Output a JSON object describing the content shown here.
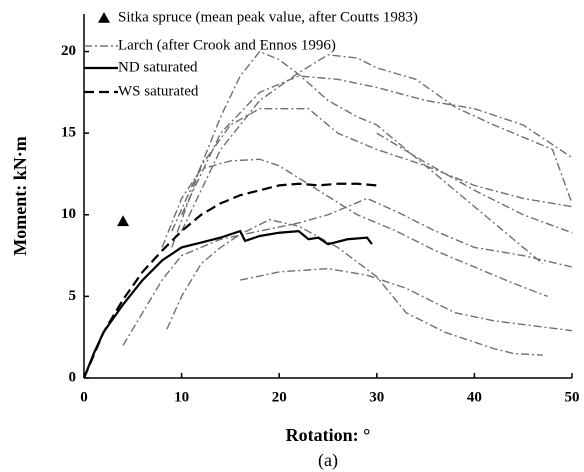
{
  "chart_data": {
    "type": "line",
    "xlabel": "Rotation: °",
    "ylabel": "Moment: kN·m",
    "caption": "(a)",
    "xlim": [
      0,
      50
    ],
    "xticks": [
      0,
      10,
      20,
      30,
      40,
      50
    ],
    "ylim": [
      0,
      22.3
    ],
    "yticks": [
      0,
      5,
      10,
      15,
      20
    ],
    "series": [
      {
        "name": "Sitka spruce (mean peak value, after Coutts 1983)",
        "style": "marker",
        "color": "#000000",
        "x": [
          4
        ],
        "values": [
          9.6
        ]
      },
      {
        "name": "Larch  (after Crook and Ennos 1996)",
        "style": "dashdot",
        "color": "#707070",
        "lines": [
          {
            "x": [
              9,
              12,
              14,
              16,
              18,
              20,
              22,
              25,
              28,
              30,
              35,
              40,
              44,
              47
            ],
            "values": [
              8,
              13,
              16,
              18.5,
              20,
              19.5,
              18.6,
              17,
              16,
              15.5,
              13,
              10.5,
              8.5,
              7
            ]
          },
          {
            "x": [
              10,
              14,
              18,
              22,
              25,
              28,
              30,
              34,
              38,
              42,
              46,
              48,
              50
            ],
            "values": [
              9,
              14,
              17,
              18.7,
              19.8,
              19.6,
              19,
              18.3,
              16.6,
              15.5,
              14.5,
              14,
              10.7
            ]
          },
          {
            "x": [
              10,
              14,
              18,
              22,
              26,
              30,
              35,
              40,
              45,
              50
            ],
            "values": [
              10,
              15,
              17.5,
              18.5,
              18.3,
              17.8,
              17,
              16.5,
              15.5,
              13.5
            ]
          },
          {
            "x": [
              9,
              12,
              15,
              18,
              23,
              26,
              30,
              35,
              40,
              45,
              50
            ],
            "values": [
              9,
              13,
              15.5,
              16.5,
              16.5,
              15,
              14,
              13,
              11.8,
              11,
              10.5
            ]
          },
          {
            "x": [
              8,
              10,
              12,
              15,
              18,
              20,
              24,
              28,
              32,
              36,
              40,
              44,
              47.5
            ],
            "values": [
              8,
              11,
              12.8,
              13.3,
              13.4,
              13,
              11.5,
              10,
              9,
              7.8,
              6.8,
              5.8,
              5
            ]
          },
          {
            "x": [
              4,
              6,
              8,
              10,
              14,
              18,
              22,
              25,
              29,
              32,
              36,
              40,
              45,
              50
            ],
            "values": [
              2,
              4,
              6,
              7.5,
              8.5,
              9,
              9.5,
              10,
              11,
              10.2,
              9,
              8,
              7.5,
              6.8
            ]
          },
          {
            "x": [
              8.5,
              10,
              12,
              14,
              16,
              19,
              22,
              26,
              30,
              33,
              37,
              42,
              44,
              47
            ],
            "values": [
              3,
              5,
              7,
              8,
              8.8,
              9.7,
              9.3,
              8,
              6.2,
              4,
              2.8,
              1.8,
              1.5,
              1.4
            ]
          },
          {
            "x": [
              16,
              20,
              25,
              29,
              33,
              38,
              42,
              46,
              50
            ],
            "values": [
              6,
              6.5,
              6.7,
              6.3,
              5.5,
              4,
              3.5,
              3.2,
              2.9
            ]
          },
          {
            "x": [
              30,
              35,
              40,
              45,
              50
            ],
            "values": [
              15,
              13.2,
              11.5,
              10,
              8.9
            ]
          }
        ]
      },
      {
        "name": "ND saturated",
        "style": "solid",
        "color": "#000000",
        "x": [
          0,
          1,
          2,
          4,
          6,
          8,
          10,
          12,
          14,
          16,
          16.5,
          18,
          20,
          22,
          23,
          24,
          25,
          27,
          29,
          29.5
        ],
        "values": [
          0,
          1.5,
          2.8,
          4.5,
          6,
          7.2,
          8,
          8.3,
          8.6,
          9,
          8.4,
          8.7,
          8.9,
          9,
          8.5,
          8.6,
          8.2,
          8.5,
          8.6,
          8.2
        ]
      },
      {
        "name": "WS saturated",
        "style": "dashed",
        "color": "#000000",
        "x": [
          0,
          2,
          4,
          6,
          8,
          10,
          12,
          14,
          16,
          18,
          20,
          22,
          24,
          26,
          28,
          30
        ],
        "values": [
          0,
          2.8,
          4.8,
          6.5,
          7.8,
          9,
          10,
          10.7,
          11.2,
          11.5,
          11.8,
          11.9,
          11.8,
          11.9,
          11.9,
          11.8
        ]
      }
    ]
  }
}
